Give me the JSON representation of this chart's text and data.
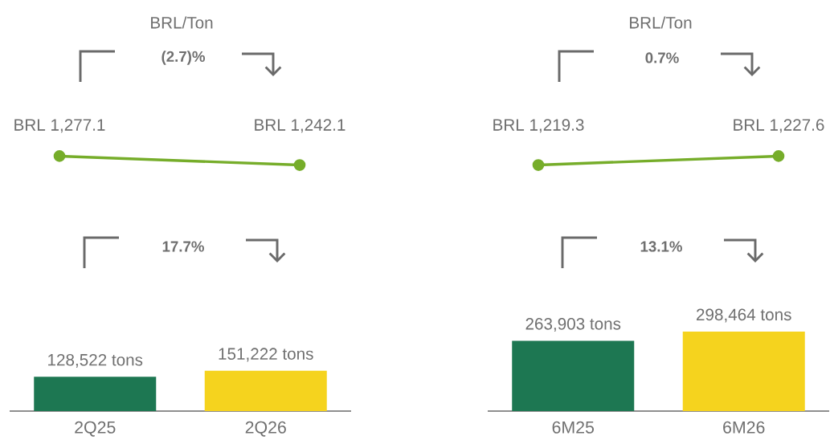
{
  "chart_data": [
    {
      "type": "line",
      "title": "BRL/Ton",
      "annotations": [
        "(2.7)%"
      ],
      "categories": [
        null,
        null
      ],
      "values": [
        1277.1,
        1242.1
      ],
      "color": "#76ad2a",
      "marker": "circle",
      "value_labels": [
        "BRL 1,277.1",
        "BRL 1,242.1"
      ]
    },
    {
      "type": "line",
      "title": "BRL/Ton",
      "annotations": [
        "0.7%"
      ],
      "categories": [
        null,
        null
      ],
      "values": [
        1219.3,
        1227.6
      ],
      "color": "#76ad2a",
      "marker": "circle",
      "value_labels": [
        "BRL 1,219.3",
        "BRL 1,227.6"
      ]
    },
    {
      "type": "bar",
      "annotations": [
        "17.7%"
      ],
      "categories": [
        "2Q25",
        "2Q26"
      ],
      "values": [
        128522,
        151222
      ],
      "colors": [
        "#1d7752",
        "#f5d31e"
      ],
      "value_labels": [
        "128,522 tons",
        "151,222 tons"
      ]
    },
    {
      "type": "bar",
      "annotations": [
        "13.1%"
      ],
      "categories": [
        "6M25",
        "6M26"
      ],
      "values": [
        263903,
        298464
      ],
      "colors": [
        "#1d7752",
        "#f5d31e"
      ],
      "value_labels": [
        "263,903 tons",
        "298,464 tons"
      ]
    }
  ]
}
